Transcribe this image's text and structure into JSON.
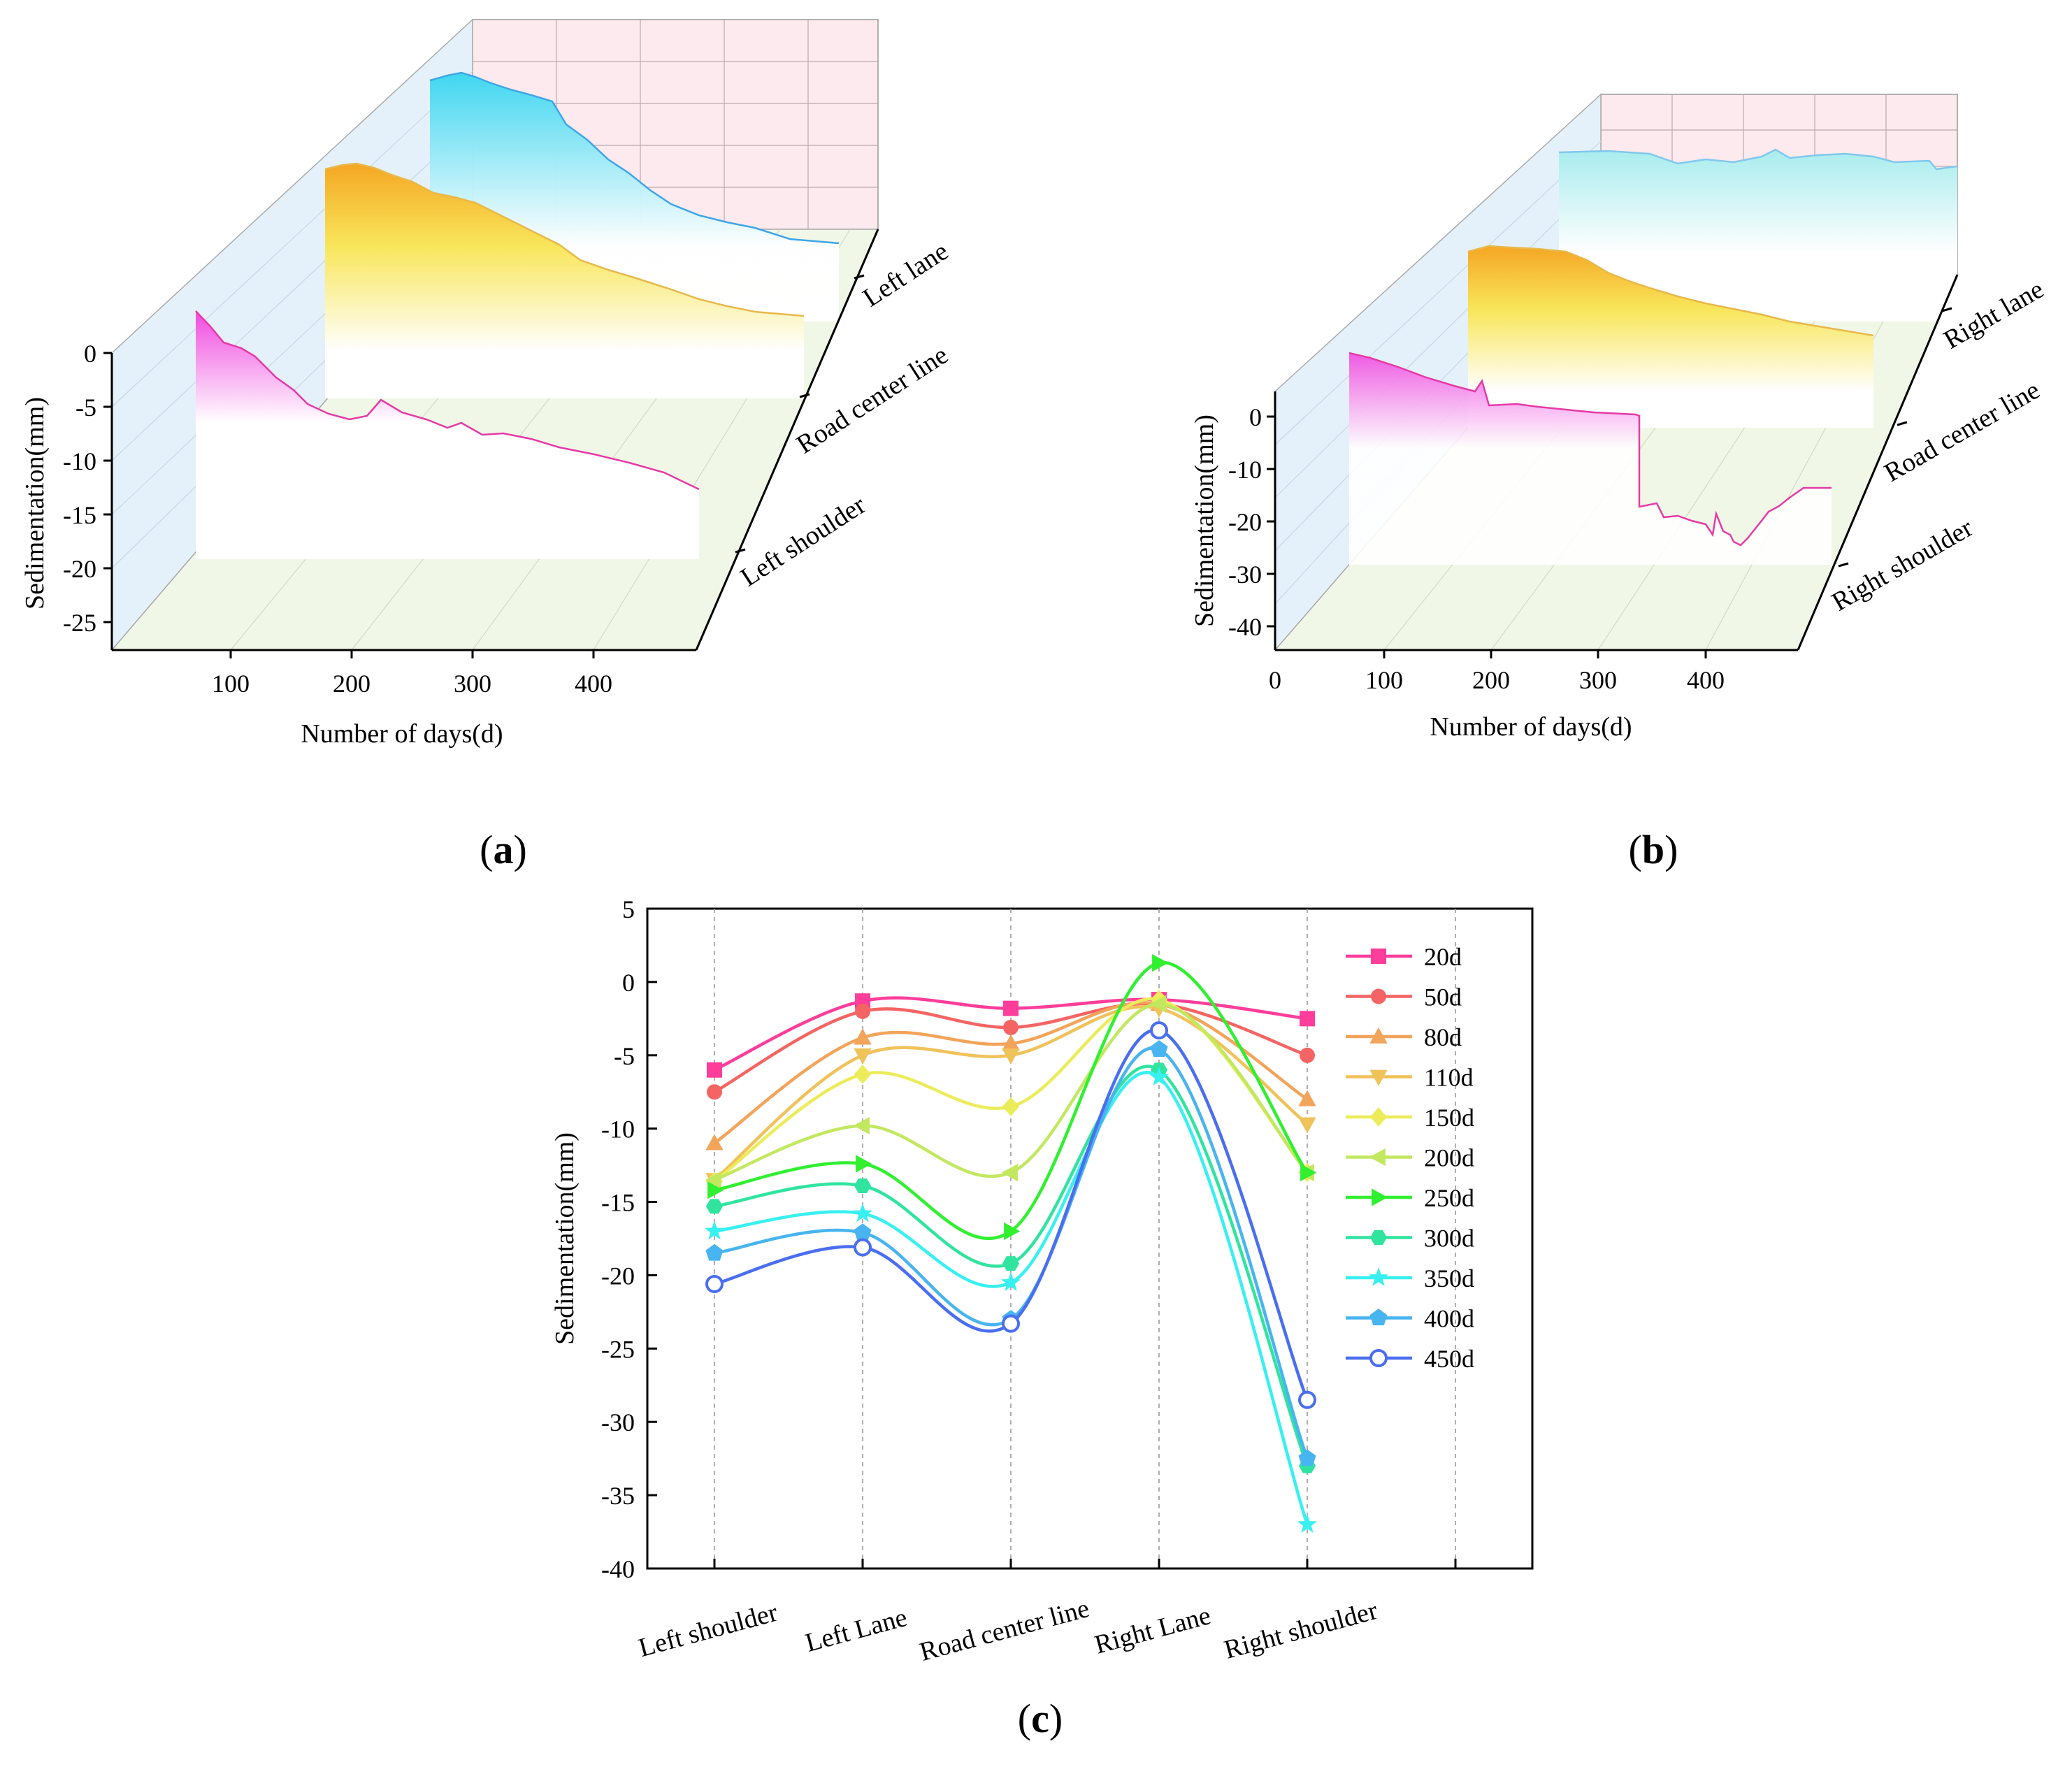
{
  "colors": {
    "d20": "#ff3d9a",
    "d50": "#f56464",
    "d80": "#f2a45a",
    "d110": "#f0c25a",
    "d150": "#ecec5a",
    "d200": "#c2e860",
    "d250": "#30f030",
    "d300": "#30e4a0",
    "d350": "#38f0f0",
    "d400": "#48b4f0",
    "d450": "#4a6ef0",
    "cyan_ribbon": "#5ad8f0",
    "orange_ribbon": "#f5a623",
    "magenta_ribbon": "#f04ab0",
    "back_wall": "#fde8ec",
    "side_wall": "#e6f2fb",
    "floor": "#f3f8e8"
  },
  "panel_a": {
    "caption_open": "(",
    "caption_letter": "a",
    "caption_close": ")",
    "ylabel": "Sedimentation(mm)",
    "xlabel": "Number of days(d)",
    "y_ticks": [
      "0",
      "-5",
      "-10",
      "-15",
      "-20",
      "-25"
    ],
    "x_ticks": [
      "100",
      "200",
      "300",
      "400"
    ],
    "depth_labels": [
      "Left lane",
      "Road center line",
      "Left shoulder"
    ]
  },
  "panel_b": {
    "caption_open": "(",
    "caption_letter": "b",
    "caption_close": ")",
    "ylabel": "Sedimentation(mm)",
    "xlabel": "Number of days(d)",
    "y_ticks": [
      "0",
      "-10",
      "-20",
      "-30",
      "-40"
    ],
    "x_ticks": [
      "0",
      "100",
      "200",
      "300",
      "400"
    ],
    "depth_labels": [
      "Right lane",
      "Road center line",
      "Right shoulder"
    ]
  },
  "panel_c": {
    "caption_open": "(",
    "caption_letter": "c",
    "caption_close": ")"
  },
  "chart_data": [
    {
      "type": "line",
      "title": "(a)",
      "xlabel": "Number of days(d)",
      "ylabel": "Sedimentation(mm)",
      "xlim": [
        0,
        470
      ],
      "ylim": [
        -27,
        0
      ],
      "series": [
        {
          "name": "Left lane",
          "x": [
            0,
            20,
            50,
            80,
            110,
            150,
            200,
            250,
            300,
            350,
            400,
            450,
            470
          ],
          "values": [
            0,
            -1.3,
            -2.0,
            -3.8,
            -5.0,
            -6.3,
            -9.8,
            -12.4,
            -13.9,
            -15.8,
            -17.1,
            -18.1,
            -18.1
          ]
        },
        {
          "name": "Road center line",
          "x": [
            0,
            20,
            50,
            80,
            110,
            150,
            200,
            250,
            300,
            350,
            400,
            450,
            470
          ],
          "values": [
            0,
            -1.8,
            -3.1,
            -4.2,
            -5.0,
            -8.5,
            -13.0,
            -17.0,
            -19.2,
            -20.5,
            -23.0,
            -23.3,
            -23.3
          ]
        },
        {
          "name": "Left shoulder",
          "x": [
            0,
            20,
            50,
            80,
            110,
            150,
            200,
            250,
            300,
            350,
            400,
            450,
            470
          ],
          "values": [
            0,
            -6.0,
            -7.5,
            -11.0,
            -13.5,
            -13.6,
            -13.5,
            -14.2,
            -15.3,
            -17.0,
            -18.5,
            -20.6,
            -20.6
          ]
        }
      ]
    },
    {
      "type": "line",
      "title": "(b)",
      "xlabel": "Number of days(d)",
      "ylabel": "Sedimentation(mm)",
      "xlim": [
        0,
        470
      ],
      "ylim": [
        -45,
        5
      ],
      "series": [
        {
          "name": "Right lane",
          "x": [
            0,
            20,
            50,
            80,
            110,
            150,
            200,
            250,
            300,
            350,
            400,
            450,
            470
          ],
          "values": [
            0,
            -1.2,
            -1.5,
            -1.5,
            -1.8,
            -1.2,
            -1.5,
            1.3,
            -6.0,
            -6.5,
            -4.6,
            -3.3,
            -3.3
          ]
        },
        {
          "name": "Road center line",
          "x": [
            0,
            20,
            50,
            80,
            110,
            150,
            200,
            250,
            300,
            350,
            400,
            450,
            470
          ],
          "values": [
            0,
            -1.8,
            -3.1,
            -4.2,
            -5.0,
            -8.5,
            -13.0,
            -17.0,
            -19.2,
            -20.5,
            -23.0,
            -23.3,
            -23.3
          ]
        },
        {
          "name": "Right shoulder",
          "x": [
            0,
            20,
            50,
            80,
            110,
            150,
            200,
            250,
            300,
            350,
            400,
            450,
            470
          ],
          "values": [
            0,
            -2.5,
            -5.0,
            -8.0,
            -9.7,
            -13.0,
            -13.0,
            -13.0,
            -33.0,
            -37.0,
            -32.5,
            -28.5,
            -28.5
          ]
        }
      ]
    },
    {
      "type": "line",
      "title": "(c)",
      "xlabel": "",
      "ylabel": "Sedimentation(mm)",
      "categories": [
        "Left shoulder",
        "Left Lane",
        "Road center line",
        "Right Lane",
        "Right shoulder"
      ],
      "ylim": [
        -40,
        5
      ],
      "y_ticks": [
        5,
        0,
        -5,
        -10,
        -15,
        -20,
        -25,
        -30,
        -35,
        -40
      ],
      "legend": "top-right",
      "series": [
        {
          "name": "20d",
          "marker": "square",
          "values": [
            -6.0,
            -1.3,
            -1.8,
            -1.2,
            -2.5
          ]
        },
        {
          "name": "50d",
          "marker": "circle",
          "values": [
            -7.5,
            -2.0,
            -3.1,
            -1.5,
            -5.0
          ]
        },
        {
          "name": "80d",
          "marker": "triangle-up",
          "values": [
            -11.0,
            -3.8,
            -4.2,
            -1.5,
            -8.0
          ]
        },
        {
          "name": "110d",
          "marker": "triangle-down",
          "values": [
            -13.5,
            -5.0,
            -5.0,
            -1.8,
            -9.7
          ]
        },
        {
          "name": "150d",
          "marker": "diamond",
          "values": [
            -13.6,
            -6.3,
            -8.5,
            -1.2,
            -13.0
          ]
        },
        {
          "name": "200d",
          "marker": "triangle-left",
          "values": [
            -13.5,
            -9.8,
            -13.0,
            -1.5,
            -13.0
          ]
        },
        {
          "name": "250d",
          "marker": "triangle-right",
          "values": [
            -14.2,
            -12.4,
            -17.0,
            1.3,
            -13.0
          ]
        },
        {
          "name": "300d",
          "marker": "hexagon",
          "values": [
            -15.3,
            -13.9,
            -19.2,
            -6.0,
            -33.0
          ]
        },
        {
          "name": "350d",
          "marker": "star",
          "values": [
            -17.0,
            -15.8,
            -20.5,
            -6.5,
            -37.0
          ]
        },
        {
          "name": "400d",
          "marker": "pentagon",
          "values": [
            -18.5,
            -17.1,
            -23.0,
            -4.6,
            -32.5
          ]
        },
        {
          "name": "450d",
          "marker": "circle-open",
          "values": [
            -20.6,
            -18.1,
            -23.3,
            -3.3,
            -28.5
          ]
        }
      ]
    }
  ]
}
